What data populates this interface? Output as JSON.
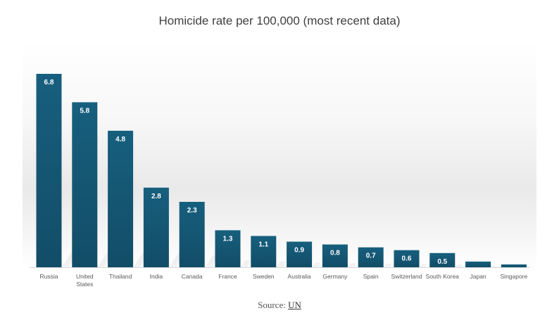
{
  "chart_data": {
    "type": "bar",
    "title": "Homicide rate per 100,000 (most recent data)",
    "categories": [
      "Russia",
      "United States",
      "Thailand",
      "India",
      "Canada",
      "France",
      "Sweden",
      "Australia",
      "Germany",
      "Spain",
      "Switzerland",
      "South Korea",
      "Japan",
      "Singapore"
    ],
    "category_lines": [
      [
        "Russia"
      ],
      [
        "United",
        "States"
      ],
      [
        "Thailand"
      ],
      [
        "India"
      ],
      [
        "Canada"
      ],
      [
        "France"
      ],
      [
        "Sweden"
      ],
      [
        "Australia"
      ],
      [
        "Germany"
      ],
      [
        "Spain"
      ],
      [
        "Switzerland"
      ],
      [
        "South Korea"
      ],
      [
        "Japan"
      ],
      [
        "Singapore"
      ]
    ],
    "values": [
      6.8,
      5.8,
      4.8,
      2.8,
      2.3,
      1.3,
      1.1,
      0.9,
      0.8,
      0.7,
      0.6,
      0.5,
      0.2,
      0.1
    ],
    "value_labels": [
      "6.8",
      "5.8",
      "4.8",
      "2.8",
      "2.3",
      "1.3",
      "1.1",
      "0.9",
      "0.8",
      "0.7",
      "0.6",
      "0.5",
      "",
      ""
    ],
    "ylim": [
      0,
      6.8
    ],
    "grid": false,
    "legend": "none",
    "bar_color": "#175f7e",
    "label_color": "#ffffff"
  },
  "source": {
    "prefix": "Source: ",
    "link_text": "UN"
  }
}
